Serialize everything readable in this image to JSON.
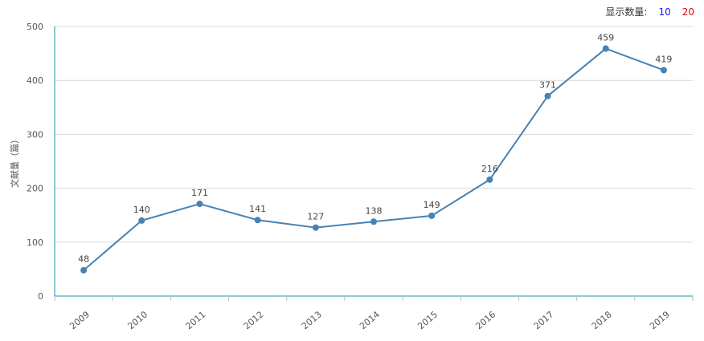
{
  "controls": {
    "label": "显示数量:",
    "options": [
      {
        "label": "10",
        "color": "#1a1aff"
      },
      {
        "label": "20",
        "color": "#e0001b"
      }
    ]
  },
  "chart_data": {
    "type": "line",
    "ylabel": "文献量（篇）",
    "categories": [
      "2009",
      "2010",
      "2011",
      "2012",
      "2013",
      "2014",
      "2015",
      "2016",
      "2017",
      "2018",
      "2019"
    ],
    "values": [
      48,
      140,
      171,
      141,
      127,
      138,
      149,
      216,
      371,
      459,
      419
    ],
    "ylim": [
      0,
      500
    ],
    "yticks": [
      0,
      100,
      200,
      300,
      400,
      500
    ],
    "grid": true,
    "line_color": "#4682b4",
    "axis_color": "#1f8fb0"
  }
}
